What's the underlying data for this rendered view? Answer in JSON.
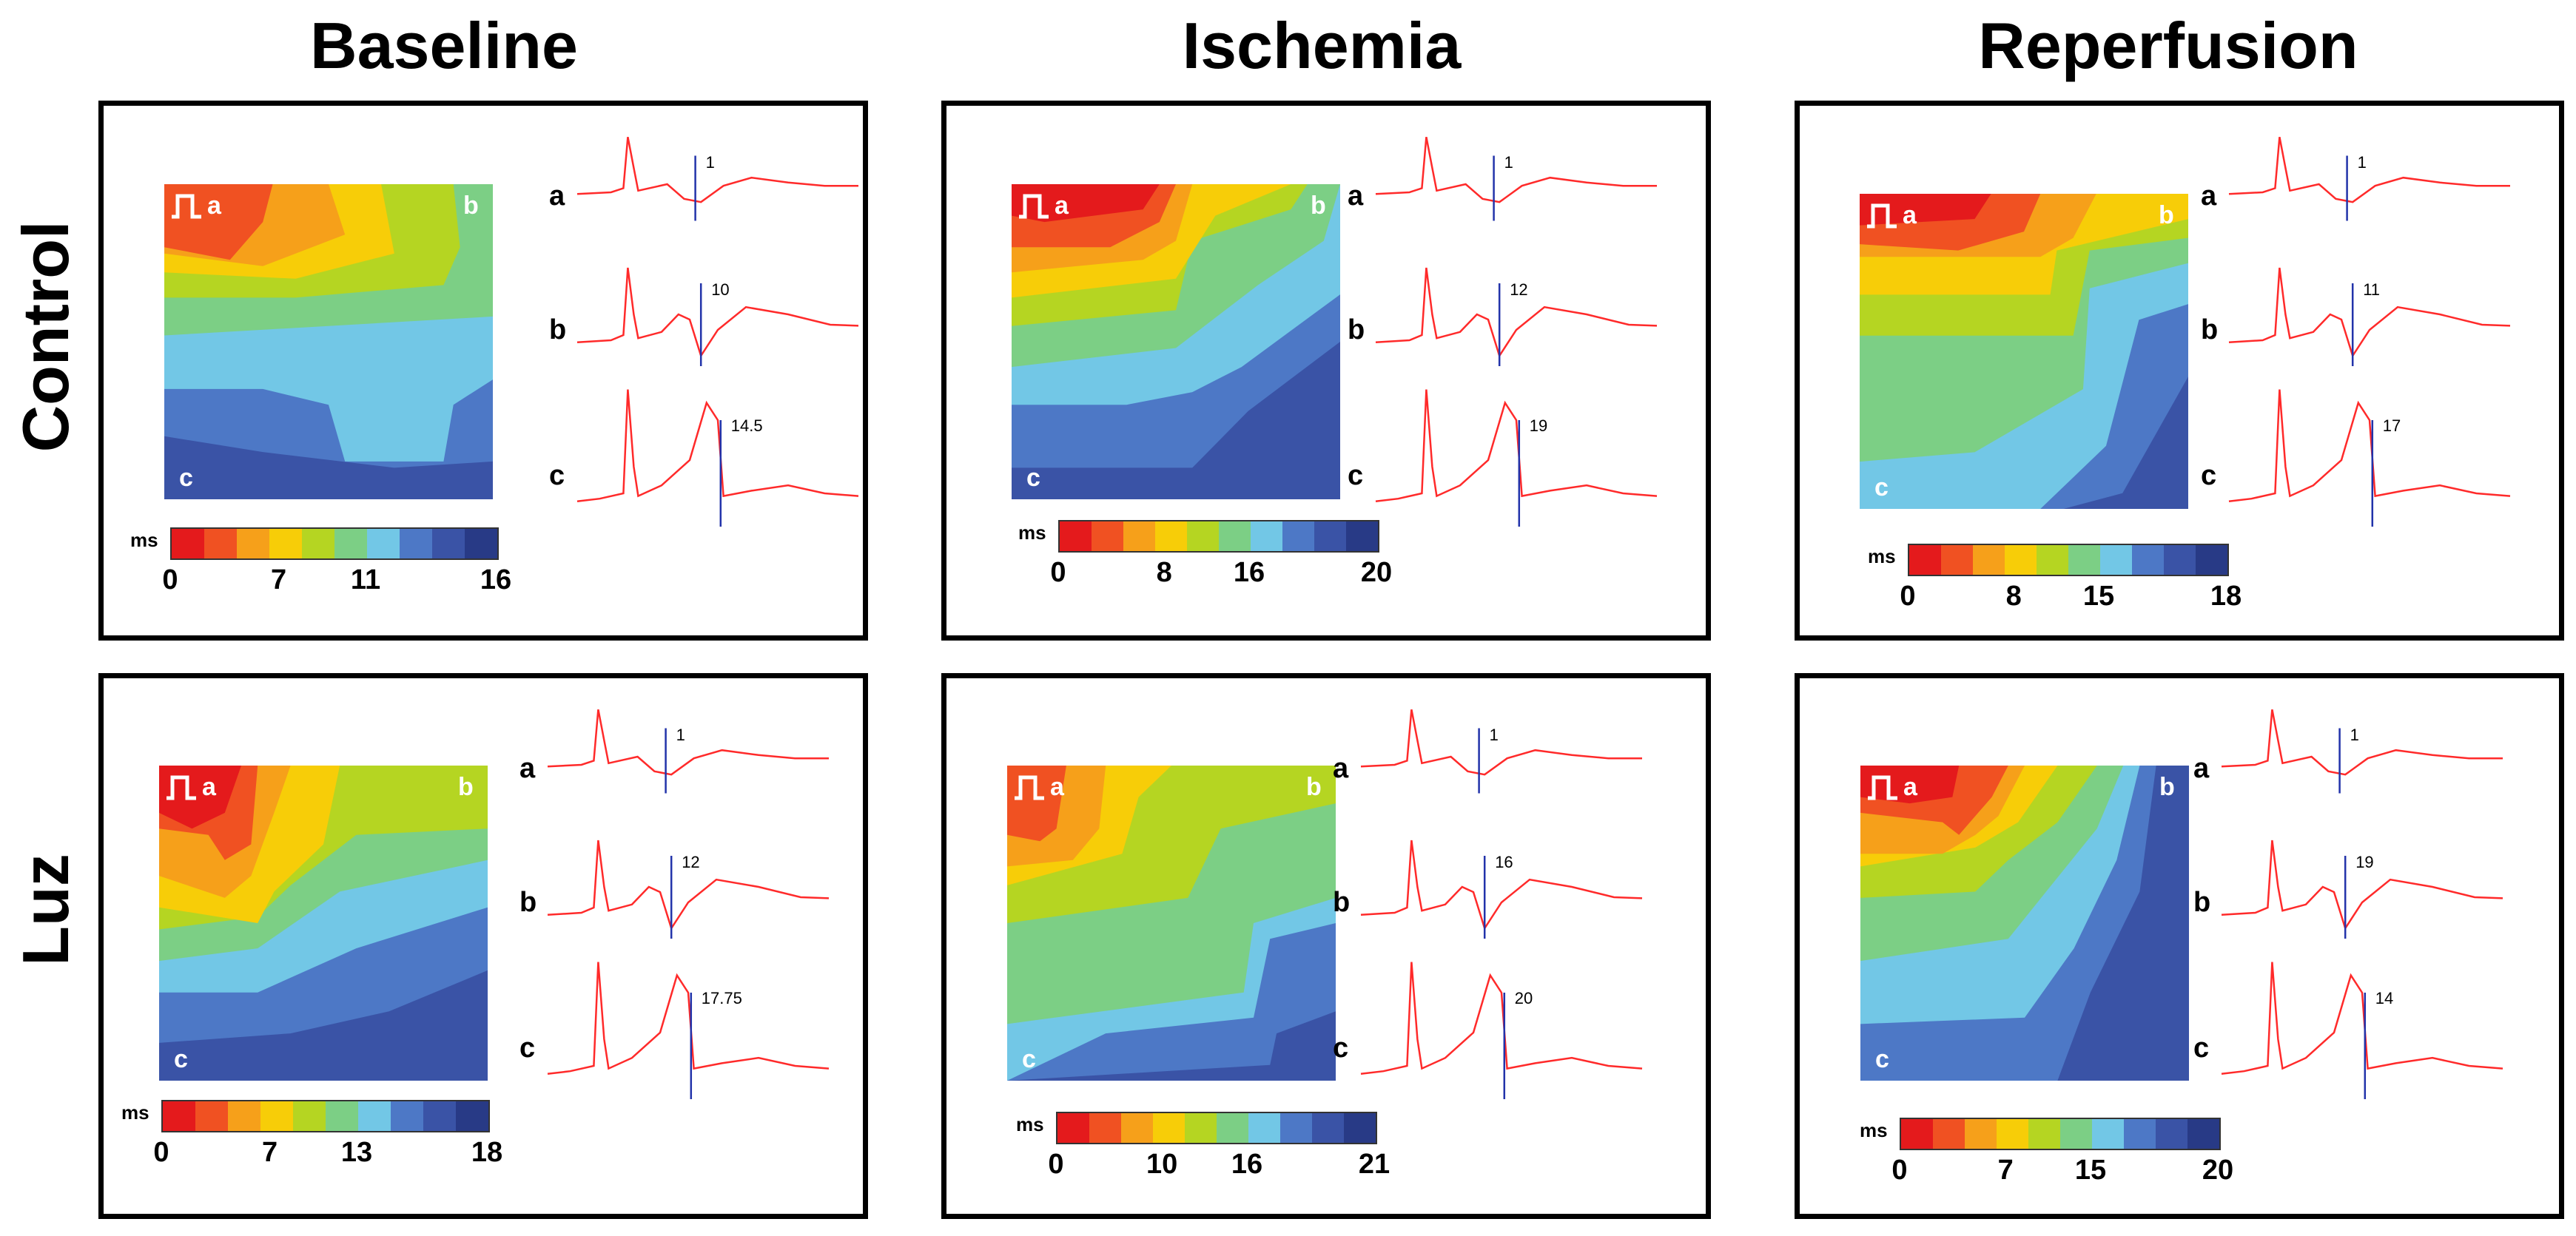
{
  "columns": [
    "Baseline",
    "Ischemia",
    "Reperfusion"
  ],
  "rows": [
    "Control",
    "Luz"
  ],
  "colorscale": [
    "#e41a1c",
    "#f05122",
    "#f6a01a",
    "#f7cd08",
    "#b5d522",
    "#7ccf85",
    "#72c7e6",
    "#4d78c6",
    "#3a53a6",
    "#283a86"
  ],
  "colorbar_unit": "ms",
  "map_corner_labels": {
    "a": "a",
    "b": "b",
    "c": "c"
  },
  "trace_labels": [
    "a",
    "b",
    "c"
  ],
  "panels": [
    {
      "id": "control-baseline",
      "row": "Control",
      "column": "Baseline",
      "ticks": [
        "0",
        "7",
        "11",
        "16"
      ],
      "trace_values": [
        "1",
        "10",
        "14.5"
      ]
    },
    {
      "id": "control-ischemia",
      "row": "Control",
      "column": "Ischemia",
      "ticks": [
        "0",
        "8",
        "16",
        "20"
      ],
      "trace_values": [
        "1",
        "12",
        "19"
      ]
    },
    {
      "id": "control-reperfusion",
      "row": "Control",
      "column": "Reperfusion",
      "ticks": [
        "0",
        "8",
        "15",
        "18"
      ],
      "trace_values": [
        "1",
        "11",
        "17"
      ]
    },
    {
      "id": "luz-baseline",
      "row": "Luz",
      "column": "Baseline",
      "ticks": [
        "0",
        "7",
        "13",
        "18"
      ],
      "trace_values": [
        "1",
        "12",
        "17.75"
      ]
    },
    {
      "id": "luz-ischemia",
      "row": "Luz",
      "column": "Ischemia",
      "ticks": [
        "0",
        "10",
        "16",
        "21"
      ],
      "trace_values": [
        "1",
        "16",
        "20"
      ]
    },
    {
      "id": "luz-reperfusion",
      "row": "Luz",
      "column": "Reperfusion",
      "ticks": [
        "0",
        "7",
        "15",
        "20"
      ],
      "trace_values": [
        "1",
        "19",
        "14"
      ]
    }
  ]
}
